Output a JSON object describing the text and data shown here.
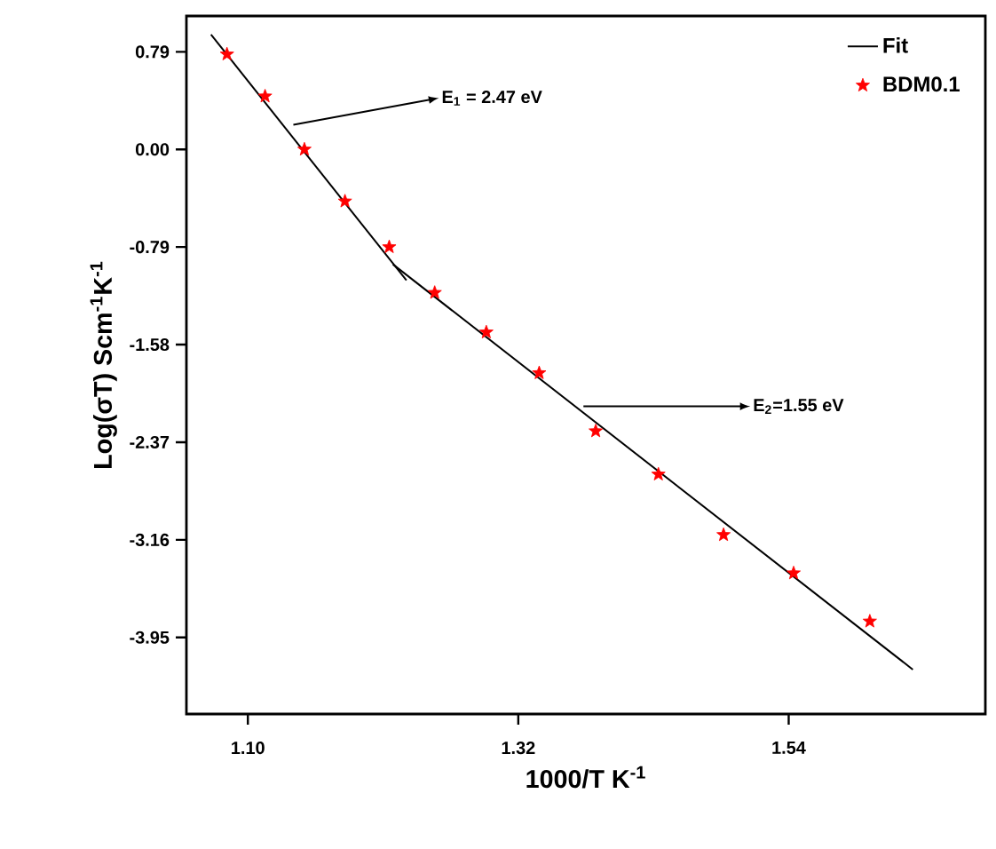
{
  "chart_data": {
    "type": "scatter",
    "xlabel": "1000/T K$^{-1}$",
    "ylabel": "Log(σT) Scm$^{-1}$K$^{-1}$",
    "xlim": [
      1.05,
      1.7
    ],
    "ylim": [
      -4.57,
      1.08
    ],
    "xticks": [
      {
        "value": 1.1,
        "label": "1.10"
      },
      {
        "value": 1.32,
        "label": "1.32"
      },
      1.54
    ],
    "yticks": [
      0.79,
      {
        "value": 0,
        "label": "0.00"
      },
      -0.79,
      -1.58,
      -2.37,
      -3.16,
      -3.95
    ],
    "legend": "top right",
    "grid": false,
    "series": [
      {
        "type": "line",
        "name": "Fit",
        "marker": "none",
        "color": "#000000",
        "x": [
          1.07,
          1.229
        ],
        "values": [
          0.93,
          -1.06
        ]
      },
      {
        "type": "line",
        "marker": "none",
        "color": "#000000",
        "x": [
          1.218,
          1.641
        ],
        "values": [
          -0.93,
          -4.21
        ]
      },
      {
        "name": "BDM0.1",
        "marker": "star",
        "color": "#ff0000",
        "x": [
          1.083,
          1.114,
          1.146,
          1.179,
          1.215,
          1.252,
          1.294,
          1.337,
          1.383,
          1.434,
          1.487,
          1.544,
          1.606
        ],
        "values": [
          0.77,
          0.43,
          0.0,
          -0.42,
          -0.79,
          -1.16,
          -1.48,
          -1.81,
          -2.28,
          -2.63,
          -3.12,
          -3.43,
          -3.82
        ]
      }
    ],
    "annotations": [
      {
        "text": "E$_{1}$ = 2.47 eV",
        "x": 1.137,
        "y": 0.2
      },
      {
        "text": "E$_{2}$=1.55 eV",
        "x": 1.373,
        "y": -2.08
      }
    ]
  }
}
